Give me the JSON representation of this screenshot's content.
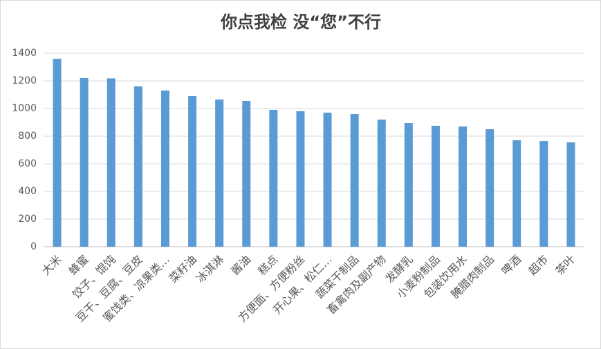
{
  "chart_data": {
    "type": "bar",
    "title": "你点我检 没“您”不行",
    "categories": [
      "大米",
      "蜂蜜",
      "饺子、馄饨",
      "豆干、豆腐、豆皮",
      "蜜饯类、凉果类…",
      "菜籽油",
      "冰淇淋",
      "酱油",
      "糕点",
      "方便面、方便粉丝",
      "开心果、松仁…",
      "蔬菜干制品",
      "畜禽肉及副产物",
      "发酵乳",
      "小麦粉制品",
      "包装饮用水",
      "腌腊肉制品",
      "啤酒",
      "超市",
      "茶叶"
    ],
    "values": [
      1360,
      1220,
      1218,
      1160,
      1130,
      1090,
      1065,
      1055,
      990,
      980,
      970,
      960,
      920,
      895,
      875,
      870,
      850,
      770,
      765,
      755
    ],
    "color": "#5b9bd5",
    "ylim": [
      0,
      1400
    ],
    "yticks": [
      0,
      200,
      400,
      600,
      800,
      1000,
      1200,
      1400
    ],
    "grid": true
  }
}
